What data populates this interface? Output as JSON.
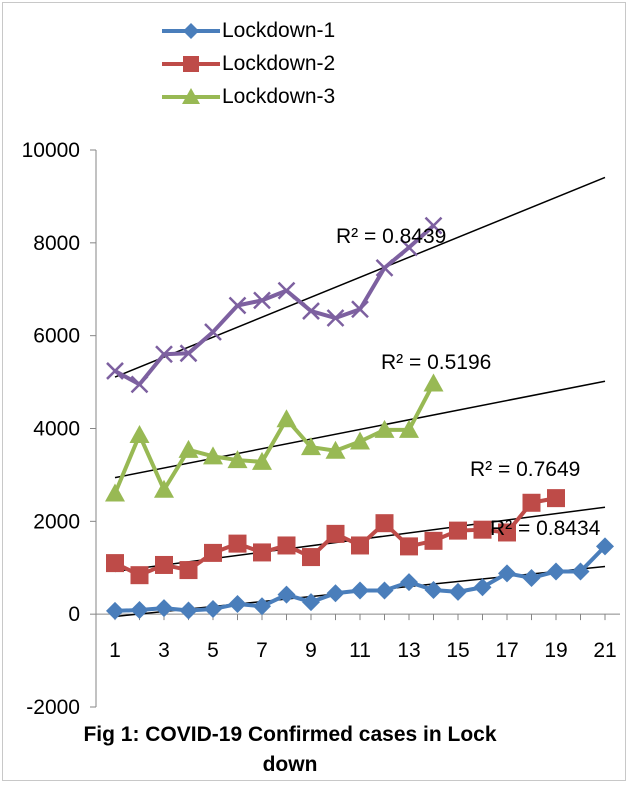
{
  "chart_data": {
    "type": "line",
    "title": "Fig 1: COVID-19 Confirmed cases in Lock down",
    "caption_lines": [
      "Fig 1: COVID-19 Confirmed cases in Lock",
      "down"
    ],
    "xlabel": "",
    "ylabel": "",
    "ylim": [
      -2000,
      10000
    ],
    "xlim": [
      1,
      21
    ],
    "x_tick_labels": [
      "1",
      "3",
      "5",
      "7",
      "9",
      "11",
      "13",
      "15",
      "17",
      "19",
      "21"
    ],
    "y_tick_labels": [
      "10000",
      "8000",
      "6000",
      "4000",
      "2000",
      "0",
      "-2000"
    ],
    "grid": false,
    "legend_position": "top-left",
    "series": [
      {
        "name": "Lockdown-1",
        "color": "#4a7ebb",
        "marker": "diamond",
        "x": [
          1,
          2,
          3,
          4,
          5,
          6,
          7,
          8,
          9,
          10,
          11,
          12,
          13,
          14,
          15,
          16,
          17,
          18,
          19,
          20,
          21
        ],
        "values": [
          70,
          90,
          130,
          80,
          110,
          220,
          170,
          420,
          260,
          450,
          510,
          510,
          690,
          520,
          480,
          580,
          880,
          780,
          920,
          920,
          1460
        ],
        "trendline": {
          "r2_label": "R² = 0.8434"
        }
      },
      {
        "name": "Lockdown-2",
        "color": "#be4b48",
        "marker": "square",
        "x": [
          1,
          2,
          3,
          4,
          5,
          6,
          7,
          8,
          9,
          10,
          11,
          12,
          13,
          14,
          15,
          16,
          17,
          18,
          19
        ],
        "values": [
          1100,
          840,
          1060,
          950,
          1320,
          1520,
          1330,
          1480,
          1230,
          1730,
          1480,
          1960,
          1460,
          1580,
          1800,
          1820,
          1760,
          2400,
          2500
        ],
        "trendline": {
          "r2_label": "R² = 0.7649"
        }
      },
      {
        "name": "Lockdown-3",
        "color": "#98b954",
        "marker": "triangle",
        "x": [
          1,
          2,
          3,
          4,
          5,
          6,
          7,
          8,
          9,
          10,
          11,
          12,
          13,
          14
        ],
        "values": [
          2600,
          3860,
          2680,
          3540,
          3400,
          3320,
          3280,
          4200,
          3600,
          3520,
          3720,
          3970,
          3970,
          4970
        ],
        "trendline": {
          "r2_label": "R² = 0.5196"
        }
      },
      {
        "color": "#7d60a0",
        "marker": "x",
        "x": [
          1,
          2,
          3,
          4,
          5,
          6,
          7,
          8,
          9,
          10,
          11,
          12,
          13,
          14
        ],
        "values": [
          5240,
          4950,
          5600,
          5620,
          6080,
          6650,
          6760,
          6970,
          6530,
          6380,
          6570,
          7460,
          7900,
          8370
        ],
        "trendline": {
          "r2_label": "R² = 0.8439"
        }
      }
    ]
  }
}
